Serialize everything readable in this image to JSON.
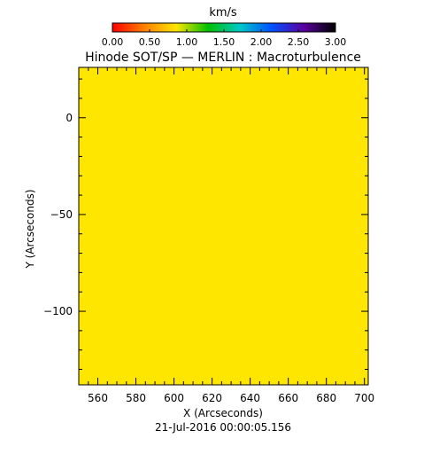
{
  "chart_data": {
    "type": "heatmap",
    "title": "Hinode SOT/SP — MERLIN : Macroturbulence",
    "xlabel": "X (Arcseconds)",
    "ylabel": "Y (Arcseconds)",
    "xlim": [
      550,
      702
    ],
    "ylim": [
      -138,
      26
    ],
    "x_ticks": [
      560,
      580,
      600,
      620,
      640,
      660,
      680,
      700
    ],
    "x_tick_labels": [
      "560",
      "580",
      "600",
      "620",
      "640",
      "660",
      "680",
      "700"
    ],
    "y_ticks": [
      0,
      -50,
      -100
    ],
    "y_tick_labels": [
      "0",
      "−50",
      "−100"
    ],
    "field_value": 0.5,
    "field_color": "#ffe600",
    "colorbar": {
      "label": "km/s",
      "range": [
        0,
        3
      ],
      "tick_values": [
        0,
        0.5,
        1,
        1.5,
        2,
        2.5,
        3
      ],
      "tick_labels": [
        "0.00",
        "0.50",
        "1.00",
        "1.50",
        "2.00",
        "2.50",
        "3.00"
      ],
      "colormap": [
        "#ff0000",
        "#ff8000",
        "#ffe600",
        "#00c000",
        "#00c8c8",
        "#0050ff",
        "#5a00a0",
        "#000000"
      ]
    },
    "footer": "21-Jul-2016 00:00:05.156"
  }
}
